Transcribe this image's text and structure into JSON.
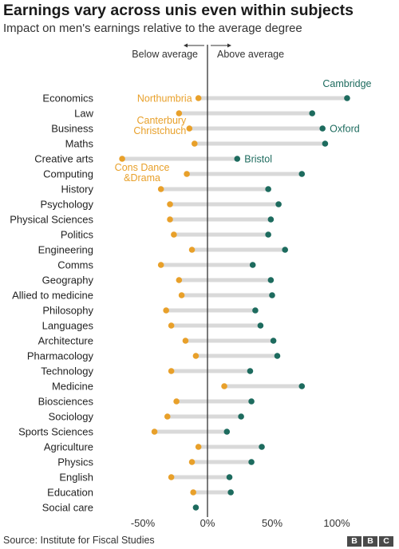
{
  "title": "Earnings vary across unis even within subjects",
  "subtitle": "Impact on men's earnings relative to the average degree",
  "source": "Source: Institute for Fiscal Studies",
  "logo": [
    "B",
    "B",
    "C"
  ],
  "colors": {
    "low": "#E8A02A",
    "high": "#1D6B5E",
    "bar": "#D9D9D9",
    "axis": "#333333"
  },
  "chart_data": {
    "type": "dumbbell",
    "title": "Earnings vary across unis even within subjects",
    "subtitle": "Impact on men's earnings relative to the average degree",
    "direction_labels": {
      "left": "Below average",
      "right": "Above average"
    },
    "x_ticks": [
      {
        "value": -50,
        "label": "-50%"
      },
      {
        "value": 0,
        "label": "0%"
      },
      {
        "value": 50,
        "label": "50%"
      },
      {
        "value": 100,
        "label": "100%"
      }
    ],
    "xlim": [
      -62,
      112
    ],
    "rows": [
      {
        "subject": "Economics",
        "low": -7,
        "high": 108
      },
      {
        "subject": "Law",
        "low": -22,
        "high": 81
      },
      {
        "subject": "Business",
        "low": -14,
        "high": 89
      },
      {
        "subject": "Maths",
        "low": -10,
        "high": 91
      },
      {
        "subject": "Creative arts",
        "low": -66,
        "high": 23
      },
      {
        "subject": "Computing",
        "low": -16,
        "high": 73
      },
      {
        "subject": "History",
        "low": -36,
        "high": 47
      },
      {
        "subject": "Psychology",
        "low": -29,
        "high": 55
      },
      {
        "subject": "Physical Sciences",
        "low": -29,
        "high": 49
      },
      {
        "subject": "Politics",
        "low": -26,
        "high": 47
      },
      {
        "subject": "Engineering",
        "low": -12,
        "high": 60
      },
      {
        "subject": "Comms",
        "low": -36,
        "high": 35
      },
      {
        "subject": "Geography",
        "low": -22,
        "high": 49
      },
      {
        "subject": "Allied to medicine",
        "low": -20,
        "high": 50
      },
      {
        "subject": "Philosophy",
        "low": -32,
        "high": 37
      },
      {
        "subject": "Languages",
        "low": -28,
        "high": 41
      },
      {
        "subject": "Architecture",
        "low": -17,
        "high": 51
      },
      {
        "subject": "Pharmacology",
        "low": -9,
        "high": 54
      },
      {
        "subject": "Technology",
        "low": -28,
        "high": 33
      },
      {
        "subject": "Medicine",
        "low": 13,
        "high": 73
      },
      {
        "subject": "Biosciences",
        "low": -24,
        "high": 34
      },
      {
        "subject": "Sociology",
        "low": -31,
        "high": 26
      },
      {
        "subject": "Sports Sciences",
        "low": -41,
        "high": 15
      },
      {
        "subject": "Agriculture",
        "low": -7,
        "high": 42
      },
      {
        "subject": "Physics",
        "low": -12,
        "high": 34
      },
      {
        "subject": "English",
        "low": -28,
        "high": 17
      },
      {
        "subject": "Education",
        "low": -11,
        "high": 18
      },
      {
        "subject": "Social care",
        "low": null,
        "high": -9
      }
    ],
    "annotations": [
      {
        "text": "Cambridge",
        "row": "Economics",
        "point": "high"
      },
      {
        "text": "Northumbria",
        "row": "Economics",
        "point": "low"
      },
      {
        "text": "Canterbury\nChristchuch",
        "row": "Business",
        "point": "low"
      },
      {
        "text": "Oxford",
        "row": "Business",
        "point": "high"
      },
      {
        "text": "Bristol",
        "row": "Creative arts",
        "point": "high"
      },
      {
        "text": "Cons Dance\n&Drama",
        "row": "Creative arts",
        "point": "low"
      }
    ]
  }
}
